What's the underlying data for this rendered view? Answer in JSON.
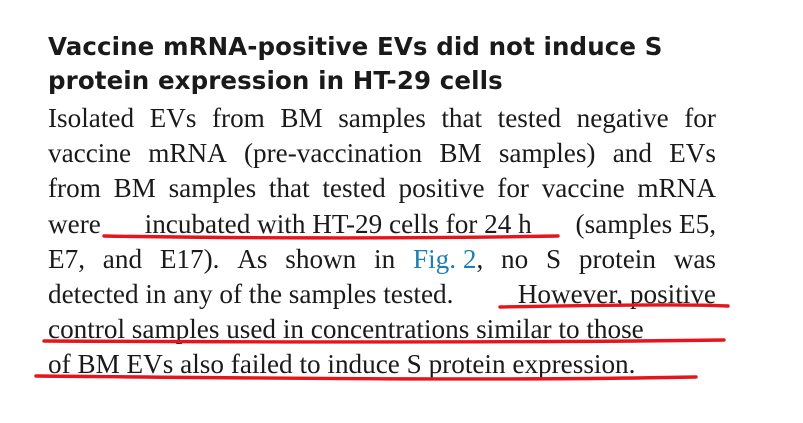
{
  "heading": {
    "line1": "Vaccine mRNA-positive EVs did not induce S",
    "line2": "protein expression in HT-29 cells"
  },
  "body": {
    "line1": [
      "Isolated",
      "EVs",
      "from",
      "BM",
      "samples",
      "that",
      "tested",
      "negative",
      "for"
    ],
    "line2": [
      "vaccine",
      "mRNA",
      "(pre-vaccination",
      "BM",
      "samples)",
      "and",
      "EVs"
    ],
    "line3": [
      "from",
      "BM",
      "samples",
      "that",
      "tested",
      "positive",
      "for",
      "vaccine",
      "mRNA"
    ],
    "line4_a": "were",
    "line4_b": "incubated with HT-29 cells for 24 h",
    "line4_c": "(samples E5,",
    "line5_a": [
      "E7,",
      "and",
      "E17).",
      "As",
      "shown",
      "in"
    ],
    "line5_link": "Fig. 2",
    "line5_b": [
      ",",
      "no",
      "S",
      "protein",
      "was"
    ],
    "line6_a": "detected in any of the samples tested.",
    "line6_b": "However, positive",
    "line7": "control samples used in concentrations similar to those",
    "line8": "of BM EVs also failed to induce S protein expression."
  },
  "annotation": {
    "color": "#e8141c"
  }
}
